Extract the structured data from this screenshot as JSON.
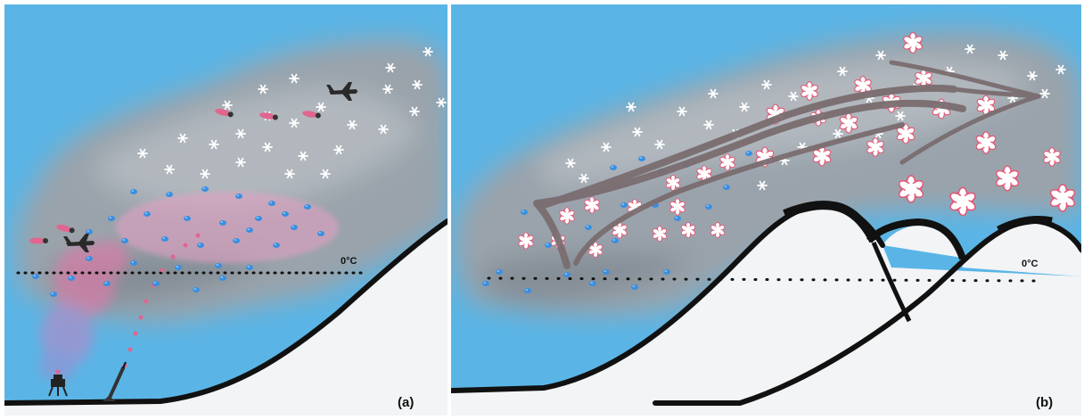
{
  "panels": [
    {
      "label": "(a)",
      "freezing_level": "0°C"
    },
    {
      "label": "(b)",
      "freezing_level": "0°C"
    }
  ],
  "colors": {
    "sky": "#5ab5e6",
    "cloud": "#9aa3ab",
    "ground_line": "#111111",
    "snow": "#f2f4f6",
    "supercooled_drop": "#3a8fe0",
    "seeding_plume": "#e0668f",
    "ice_crystal": "#ffffff",
    "rimed_snow": "#e05a78",
    "airflow_arrow": "#7a6d70"
  },
  "icons": [
    "airplane-icon",
    "ground-generator-icon",
    "rocket-launcher-icon",
    "flare-icon",
    "snowflake-icon",
    "airflow-arrow-icon"
  ]
}
